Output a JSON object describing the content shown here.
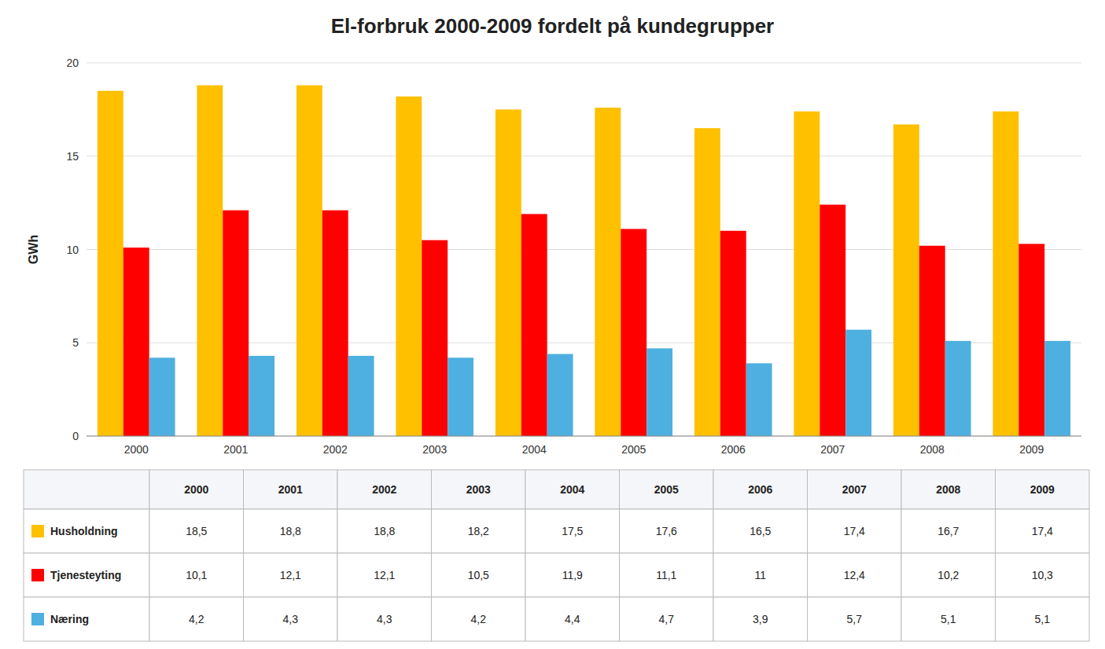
{
  "chart_data": {
    "type": "bar",
    "title": "El-forbruk 2000-2009 fordelt på kundegrupper",
    "y_label": "GWh",
    "categories": [
      "2000",
      "2001",
      "2002",
      "2003",
      "2004",
      "2005",
      "2006",
      "2007",
      "2008",
      "2009"
    ],
    "series": [
      {
        "name": "Husholdning",
        "color": "#FFC000",
        "values": [
          18.5,
          18.8,
          18.8,
          18.2,
          17.5,
          17.6,
          16.5,
          17.4,
          16.7,
          17.4
        ],
        "value_labels": [
          "18,5",
          "18,8",
          "18,8",
          "18,2",
          "17,5",
          "17,6",
          "16,5",
          "17,4",
          "16,7",
          "17,4"
        ]
      },
      {
        "name": "Tjenesteyting",
        "color": "#FF0000",
        "values": [
          10.1,
          12.1,
          12.1,
          10.5,
          11.9,
          11.1,
          11.0,
          12.4,
          10.2,
          10.3
        ],
        "value_labels": [
          "10,1",
          "12,1",
          "12,1",
          "10,5",
          "11,9",
          "11,1",
          "11",
          "12,4",
          "10,2",
          "10,3"
        ]
      },
      {
        "name": "Næring",
        "color": "#4EB0E0",
        "values": [
          4.2,
          4.3,
          4.3,
          4.2,
          4.4,
          4.7,
          3.9,
          5.7,
          5.1,
          5.1
        ],
        "value_labels": [
          "4,2",
          "4,3",
          "4,3",
          "4,2",
          "4,4",
          "4,7",
          "3,9",
          "5,7",
          "5,1",
          "5,1"
        ]
      }
    ],
    "ylim": [
      0,
      20
    ],
    "yticks": [
      0,
      5,
      10,
      15,
      20
    ],
    "grid": true,
    "legend": "bottom"
  }
}
